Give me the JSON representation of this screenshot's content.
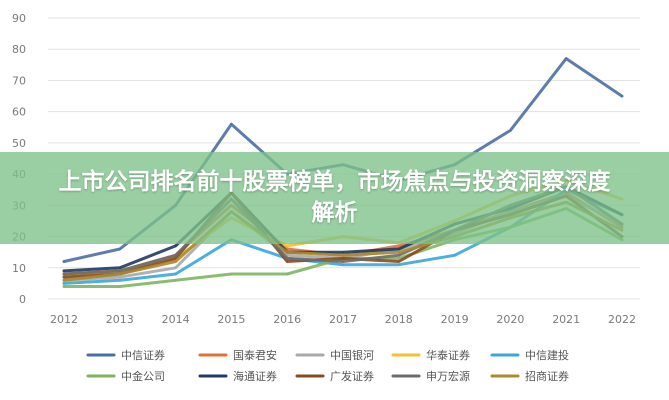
{
  "banner": {
    "title": "上市公司排名前十股票榜单，市场焦点与投资洞察深度解析"
  },
  "chart_data": {
    "type": "line",
    "title": "",
    "xlabel": "",
    "ylabel": "",
    "x": [
      "2012",
      "2013",
      "2014",
      "2015",
      "2016",
      "2017",
      "2018",
      "2019",
      "2020",
      "2021",
      "2022"
    ],
    "ylim": [
      0,
      90
    ],
    "yticks": [
      0,
      10,
      20,
      30,
      40,
      50,
      60,
      70,
      80,
      90
    ],
    "grid": true,
    "legend_position": "bottom",
    "series": [
      {
        "name": "中信证券",
        "color": "#4a6fa5",
        "values": [
          12,
          16,
          30,
          56,
          40,
          43,
          38,
          43,
          54,
          77,
          65
        ]
      },
      {
        "name": "国泰君安",
        "color": "#e0703a",
        "values": [
          8,
          9,
          14,
          30,
          16,
          14,
          17,
          22,
          28,
          34,
          23
        ]
      },
      {
        "name": "中国银河",
        "color": "#a9a9a9",
        "values": [
          6,
          7,
          10,
          28,
          14,
          13,
          16,
          21,
          28,
          33,
          24
        ]
      },
      {
        "name": "华泰证券",
        "color": "#f3c034",
        "values": [
          7,
          9,
          13,
          26,
          17,
          20,
          18,
          25,
          33,
          38,
          32
        ]
      },
      {
        "name": "中信建投",
        "color": "#3aa6d9",
        "values": [
          5,
          6,
          8,
          19,
          13,
          11,
          11,
          14,
          23,
          35,
          27
        ]
      },
      {
        "name": "中金公司",
        "color": "#7fb55e",
        "values": [
          4,
          4,
          6,
          8,
          8,
          13,
          13,
          19,
          23,
          29,
          19
        ]
      },
      {
        "name": "海通证券",
        "color": "#1f3a63",
        "values": [
          9,
          10,
          17,
          34,
          15,
          15,
          16,
          24,
          29,
          36,
          27
        ]
      },
      {
        "name": "广发证券",
        "color": "#8a4a21",
        "values": [
          7,
          8,
          13,
          34,
          12,
          13,
          12,
          22,
          27,
          33,
          20
        ]
      },
      {
        "name": "申万宏源",
        "color": "#6b6b6b",
        "values": [
          8,
          9,
          14,
          32,
          13,
          12,
          14,
          22,
          30,
          36,
          24
        ]
      },
      {
        "name": "招商证券",
        "color": "#a98a2c",
        "values": [
          6,
          8,
          12,
          28,
          15,
          14,
          15,
          20,
          26,
          31,
          22
        ]
      }
    ]
  }
}
